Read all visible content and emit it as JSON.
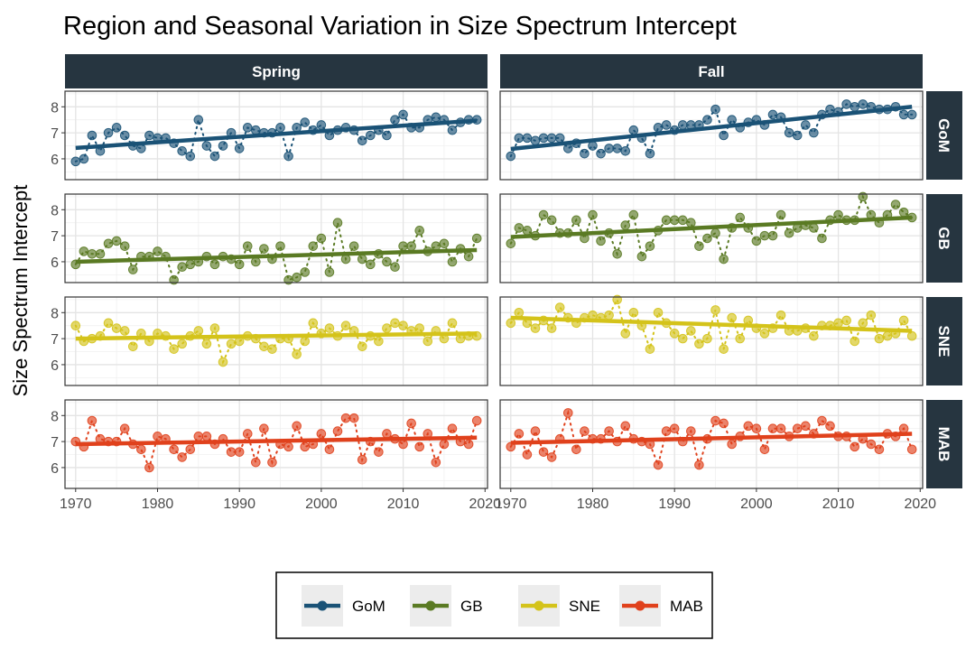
{
  "chart_data": {
    "type": "scatter",
    "title": "Region and Seasonal Variation in Size Spectrum Intercept",
    "xlabel": "",
    "ylabel": "Size Spectrum Intercept",
    "x_ticks": [
      1970,
      1980,
      1990,
      2000,
      2010,
      2020
    ],
    "y_ticks": [
      6,
      7,
      8
    ],
    "xlim": [
      1968.7,
      2020.3
    ],
    "ylim": [
      5.2,
      8.6
    ],
    "columns": [
      "Spring",
      "Fall"
    ],
    "rows": [
      "GoM",
      "GB",
      "SNE",
      "MAB"
    ],
    "legend_position": "bottom",
    "grid": true,
    "colors": {
      "GoM": "#1a5276",
      "GB": "#5a7a23",
      "SNE": "#d4c31a",
      "MAB": "#e0411c",
      "strip": "#263540"
    },
    "legend": [
      {
        "label": "GoM",
        "color": "#1a5276"
      },
      {
        "label": "GB",
        "color": "#5a7a23"
      },
      {
        "label": "SNE",
        "color": "#d4c31a"
      },
      {
        "label": "MAB",
        "color": "#e0411c"
      }
    ],
    "panels": [
      {
        "region": "GoM",
        "season": "Spring",
        "x": [
          1970,
          1971,
          1972,
          1973,
          1974,
          1975,
          1976,
          1977,
          1978,
          1979,
          1980,
          1981,
          1982,
          1983,
          1984,
          1985,
          1986,
          1987,
          1988,
          1989,
          1990,
          1991,
          1992,
          1993,
          1994,
          1995,
          1996,
          1997,
          1998,
          1999,
          2000,
          2001,
          2002,
          2003,
          2004,
          2005,
          2006,
          2007,
          2008,
          2009,
          2010,
          2011,
          2012,
          2013,
          2014,
          2015,
          2016,
          2017,
          2018,
          2019
        ],
        "y": [
          5.9,
          6.0,
          6.9,
          6.3,
          7.0,
          7.2,
          6.9,
          6.5,
          6.4,
          6.9,
          6.8,
          6.8,
          6.6,
          6.3,
          6.1,
          7.5,
          6.5,
          6.1,
          6.5,
          7.0,
          6.4,
          7.2,
          7.1,
          7.0,
          7.0,
          7.2,
          6.1,
          7.2,
          7.4,
          7.1,
          7.3,
          6.9,
          7.1,
          7.2,
          7.1,
          6.7,
          6.9,
          7.1,
          6.9,
          7.5,
          7.7,
          7.2,
          7.2,
          7.5,
          7.6,
          7.5,
          7.1,
          7.4,
          7.5,
          7.5
        ],
        "trend": [
          6.42,
          7.47
        ]
      },
      {
        "region": "GoM",
        "season": "Fall",
        "x": [
          1970,
          1971,
          1972,
          1973,
          1974,
          1975,
          1976,
          1977,
          1978,
          1979,
          1980,
          1981,
          1982,
          1983,
          1984,
          1985,
          1986,
          1987,
          1988,
          1989,
          1990,
          1991,
          1992,
          1993,
          1994,
          1995,
          1996,
          1997,
          1998,
          1999,
          2000,
          2001,
          2002,
          2003,
          2004,
          2005,
          2006,
          2007,
          2008,
          2009,
          2010,
          2011,
          2012,
          2013,
          2014,
          2015,
          2016,
          2017,
          2018,
          2019
        ],
        "y": [
          6.1,
          6.8,
          6.8,
          6.7,
          6.8,
          6.8,
          6.8,
          6.4,
          6.6,
          6.2,
          6.5,
          6.2,
          6.4,
          6.4,
          6.3,
          7.1,
          6.8,
          6.2,
          7.2,
          7.3,
          7.1,
          7.3,
          7.3,
          7.3,
          7.5,
          7.9,
          6.9,
          7.5,
          7.2,
          7.4,
          7.5,
          7.3,
          7.7,
          7.6,
          7.0,
          6.9,
          7.3,
          7.0,
          7.7,
          7.9,
          7.8,
          8.1,
          8.0,
          8.1,
          8.0,
          7.9,
          7.9,
          8.0,
          7.7,
          7.7
        ],
        "trend": [
          6.38,
          8.0
        ]
      },
      {
        "region": "GB",
        "season": "Spring",
        "x": [
          1970,
          1971,
          1972,
          1973,
          1974,
          1975,
          1976,
          1977,
          1978,
          1979,
          1980,
          1981,
          1982,
          1983,
          1984,
          1985,
          1986,
          1987,
          1988,
          1989,
          1990,
          1991,
          1992,
          1993,
          1994,
          1995,
          1996,
          1997,
          1998,
          1999,
          2000,
          2001,
          2002,
          2003,
          2004,
          2005,
          2006,
          2007,
          2008,
          2009,
          2010,
          2011,
          2012,
          2013,
          2014,
          2015,
          2016,
          2017,
          2018,
          2019
        ],
        "y": [
          5.9,
          6.4,
          6.3,
          6.3,
          6.7,
          6.8,
          6.6,
          5.7,
          6.2,
          6.2,
          6.4,
          6.2,
          5.3,
          5.8,
          5.9,
          6.0,
          6.2,
          5.9,
          6.2,
          6.1,
          5.9,
          6.6,
          6.0,
          6.5,
          6.1,
          6.6,
          5.3,
          5.4,
          5.6,
          6.6,
          6.9,
          5.6,
          7.5,
          6.1,
          6.6,
          6.1,
          5.9,
          6.3,
          6.0,
          5.8,
          6.6,
          6.6,
          7.2,
          6.4,
          6.6,
          6.7,
          6.0,
          6.5,
          6.2,
          6.9
        ],
        "trend": [
          6.0,
          6.45
        ]
      },
      {
        "region": "GB",
        "season": "Fall",
        "x": [
          1970,
          1971,
          1972,
          1973,
          1974,
          1975,
          1976,
          1977,
          1978,
          1979,
          1980,
          1981,
          1982,
          1983,
          1984,
          1985,
          1986,
          1987,
          1988,
          1989,
          1990,
          1991,
          1992,
          1993,
          1994,
          1995,
          1996,
          1997,
          1998,
          1999,
          2000,
          2001,
          2002,
          2003,
          2004,
          2005,
          2006,
          2007,
          2008,
          2009,
          2010,
          2011,
          2012,
          2013,
          2014,
          2015,
          2016,
          2017,
          2018,
          2019
        ],
        "y": [
          6.7,
          7.3,
          7.2,
          7.0,
          7.8,
          7.6,
          7.1,
          7.1,
          7.6,
          6.9,
          7.8,
          6.8,
          7.1,
          6.3,
          7.4,
          7.8,
          6.2,
          6.6,
          7.2,
          7.6,
          7.6,
          7.6,
          7.5,
          6.6,
          6.9,
          7.1,
          6.1,
          7.3,
          7.7,
          7.3,
          6.8,
          7.0,
          7.0,
          7.8,
          7.1,
          7.3,
          7.4,
          7.3,
          6.9,
          7.6,
          7.8,
          7.6,
          7.6,
          8.5,
          7.8,
          7.5,
          7.8,
          8.2,
          7.9,
          7.7
        ],
        "trend": [
          6.95,
          7.7
        ]
      },
      {
        "region": "SNE",
        "season": "Spring",
        "x": [
          1970,
          1971,
          1972,
          1973,
          1974,
          1975,
          1976,
          1977,
          1978,
          1979,
          1980,
          1981,
          1982,
          1983,
          1984,
          1985,
          1986,
          1987,
          1988,
          1989,
          1990,
          1991,
          1992,
          1993,
          1994,
          1995,
          1996,
          1997,
          1998,
          1999,
          2000,
          2001,
          2002,
          2003,
          2004,
          2005,
          2006,
          2007,
          2008,
          2009,
          2010,
          2011,
          2012,
          2013,
          2014,
          2015,
          2016,
          2017,
          2018,
          2019
        ],
        "y": [
          7.5,
          6.9,
          7.0,
          7.1,
          7.6,
          7.4,
          7.3,
          6.7,
          7.2,
          6.9,
          7.2,
          7.1,
          6.6,
          6.8,
          7.1,
          7.3,
          6.8,
          7.4,
          6.1,
          6.8,
          6.9,
          7.1,
          7.0,
          6.7,
          6.6,
          7.0,
          7.0,
          6.4,
          6.9,
          7.6,
          7.2,
          7.4,
          7.1,
          7.5,
          7.3,
          6.7,
          7.1,
          6.9,
          7.4,
          7.6,
          7.5,
          7.3,
          7.4,
          6.9,
          7.3,
          7.0,
          7.6,
          7.0,
          7.1,
          7.1
        ],
        "trend": [
          7.0,
          7.2
        ]
      },
      {
        "region": "SNE",
        "season": "Fall",
        "x": [
          1970,
          1971,
          1972,
          1973,
          1974,
          1975,
          1976,
          1977,
          1978,
          1979,
          1980,
          1981,
          1982,
          1983,
          1984,
          1985,
          1986,
          1987,
          1988,
          1989,
          1990,
          1991,
          1992,
          1993,
          1994,
          1995,
          1996,
          1997,
          1998,
          1999,
          2000,
          2001,
          2002,
          2003,
          2004,
          2005,
          2006,
          2007,
          2008,
          2009,
          2010,
          2011,
          2012,
          2013,
          2014,
          2015,
          2016,
          2017,
          2018,
          2019
        ],
        "y": [
          7.6,
          8.0,
          7.6,
          7.4,
          7.7,
          7.4,
          8.2,
          7.8,
          7.6,
          7.8,
          7.9,
          7.8,
          7.9,
          8.5,
          7.2,
          8.0,
          7.5,
          6.6,
          8.0,
          7.6,
          7.2,
          7.0,
          7.3,
          6.8,
          7.0,
          8.1,
          6.6,
          7.8,
          7.0,
          7.7,
          7.4,
          7.2,
          7.4,
          7.9,
          7.3,
          7.3,
          7.4,
          7.1,
          7.5,
          7.5,
          7.6,
          7.7,
          6.9,
          7.6,
          7.9,
          7.0,
          7.1,
          7.2,
          7.7,
          7.1
        ],
        "trend": [
          7.8,
          7.3
        ]
      },
      {
        "region": "MAB",
        "season": "Spring",
        "x": [
          1970,
          1971,
          1972,
          1973,
          1974,
          1975,
          1976,
          1977,
          1978,
          1979,
          1980,
          1981,
          1982,
          1983,
          1984,
          1985,
          1986,
          1987,
          1988,
          1989,
          1990,
          1991,
          1992,
          1993,
          1994,
          1995,
          1996,
          1997,
          1998,
          1999,
          2000,
          2001,
          2002,
          2003,
          2004,
          2005,
          2006,
          2007,
          2008,
          2009,
          2010,
          2011,
          2012,
          2013,
          2014,
          2015,
          2016,
          2017,
          2018,
          2019
        ],
        "y": [
          7.0,
          6.8,
          7.8,
          7.1,
          7.0,
          7.0,
          7.5,
          6.9,
          6.7,
          6.0,
          7.2,
          7.1,
          6.7,
          6.4,
          6.7,
          7.2,
          7.2,
          6.9,
          7.1,
          6.6,
          6.6,
          7.3,
          6.2,
          7.5,
          6.2,
          6.9,
          6.8,
          7.6,
          6.8,
          6.9,
          7.3,
          6.7,
          7.4,
          7.9,
          7.9,
          6.3,
          7.0,
          6.6,
          7.3,
          7.1,
          6.9,
          7.7,
          6.8,
          7.3,
          6.2,
          6.9,
          7.5,
          7.0,
          6.9,
          7.8
        ],
        "trend": [
          6.9,
          7.15
        ]
      },
      {
        "region": "MAB",
        "season": "Fall",
        "x": [
          1970,
          1971,
          1972,
          1973,
          1974,
          1975,
          1976,
          1977,
          1978,
          1979,
          1980,
          1981,
          1982,
          1983,
          1984,
          1985,
          1986,
          1987,
          1988,
          1989,
          1990,
          1991,
          1992,
          1993,
          1994,
          1995,
          1996,
          1997,
          1998,
          1999,
          2000,
          2001,
          2002,
          2003,
          2004,
          2005,
          2006,
          2007,
          2008,
          2009,
          2010,
          2011,
          2012,
          2013,
          2014,
          2015,
          2016,
          2017,
          2018,
          2019
        ],
        "y": [
          6.8,
          7.3,
          6.5,
          7.4,
          6.6,
          6.4,
          7.1,
          8.1,
          6.7,
          7.4,
          7.1,
          7.1,
          7.4,
          7.0,
          7.6,
          7.1,
          7.0,
          6.9,
          6.1,
          7.4,
          7.5,
          7.0,
          7.4,
          6.1,
          7.1,
          7.8,
          7.7,
          6.9,
          7.2,
          7.6,
          7.5,
          6.7,
          7.5,
          7.5,
          7.2,
          7.5,
          7.6,
          7.3,
          7.8,
          7.6,
          7.2,
          7.2,
          6.8,
          7.1,
          6.9,
          6.7,
          7.3,
          7.2,
          7.5,
          6.7
        ],
        "trend": [
          6.95,
          7.3
        ]
      }
    ]
  }
}
